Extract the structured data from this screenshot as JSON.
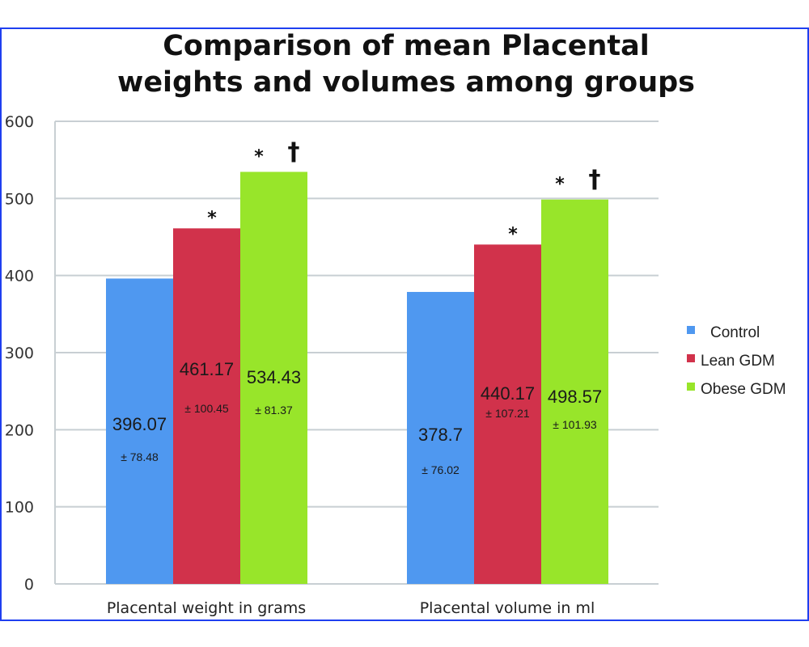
{
  "chart_data": {
    "type": "bar",
    "title": [
      "Comparison of mean Placental",
      "weights and volumes among groups"
    ],
    "xlabel": "",
    "ylabel": "",
    "ylim": [
      0,
      600
    ],
    "yticks": [
      0,
      100,
      200,
      300,
      400,
      500,
      600
    ],
    "grid": true,
    "legend_position": "right",
    "categories": [
      "Placental weight in grams",
      "Placental volume in ml"
    ],
    "series": [
      {
        "name": "Control",
        "color": "#4f98f0",
        "values": [
          396.07,
          378.7
        ],
        "value_labels": [
          "396.07",
          "378.7"
        ],
        "sd": [
          "± 78.48",
          "± 76.02"
        ],
        "markers": [
          "",
          ""
        ]
      },
      {
        "name": "Lean GDM",
        "color": "#d1324b",
        "values": [
          461.17,
          440.17
        ],
        "value_labels": [
          "461.17",
          "440.17"
        ],
        "sd": [
          "± 100.45",
          "± 107.21"
        ],
        "markers": [
          "*",
          "*"
        ]
      },
      {
        "name": "Obese GDM",
        "color": "#98e52a",
        "values": [
          534.43,
          498.57
        ],
        "value_labels": [
          "534.43",
          "498.57"
        ],
        "sd": [
          "± 81.37",
          "± 101.93"
        ],
        "markers": [
          "*  †",
          "*  †"
        ]
      }
    ]
  },
  "colors": {
    "frame": "#1f3ff0",
    "grid": "#c8cfd3"
  }
}
